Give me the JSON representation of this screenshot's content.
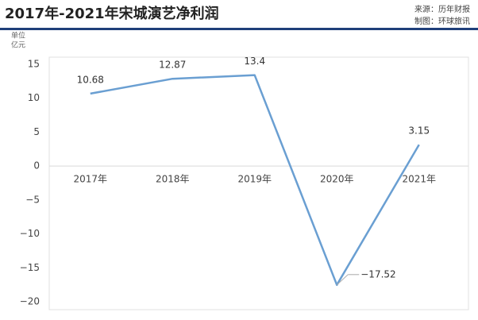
{
  "chart_data": {
    "type": "line",
    "title": "2017年-2021年宋城演艺净利润",
    "source": "来源：历年财报",
    "credit": "制图：环球旅讯",
    "unit_label": [
      "单位",
      "亿元"
    ],
    "categories": [
      "2017年",
      "2018年",
      "2019年",
      "2020年",
      "2021年"
    ],
    "series": [
      {
        "color": "#6a9fd2",
        "values": [
          10.68,
          12.87,
          13.4,
          -17.52,
          3.15
        ],
        "value_labels": [
          "10.68",
          "12.87",
          "13.4",
          "−17.52",
          "3.15"
        ]
      }
    ],
    "ylim": [
      -20,
      15
    ],
    "yticks": [
      15,
      10,
      5,
      0,
      {
        "value": -5,
        "label": "−5"
      },
      {
        "value": -10,
        "label": "−10"
      },
      {
        "value": -15,
        "label": "−15"
      },
      {
        "value": -20,
        "label": "−20"
      }
    ],
    "grid": false
  }
}
